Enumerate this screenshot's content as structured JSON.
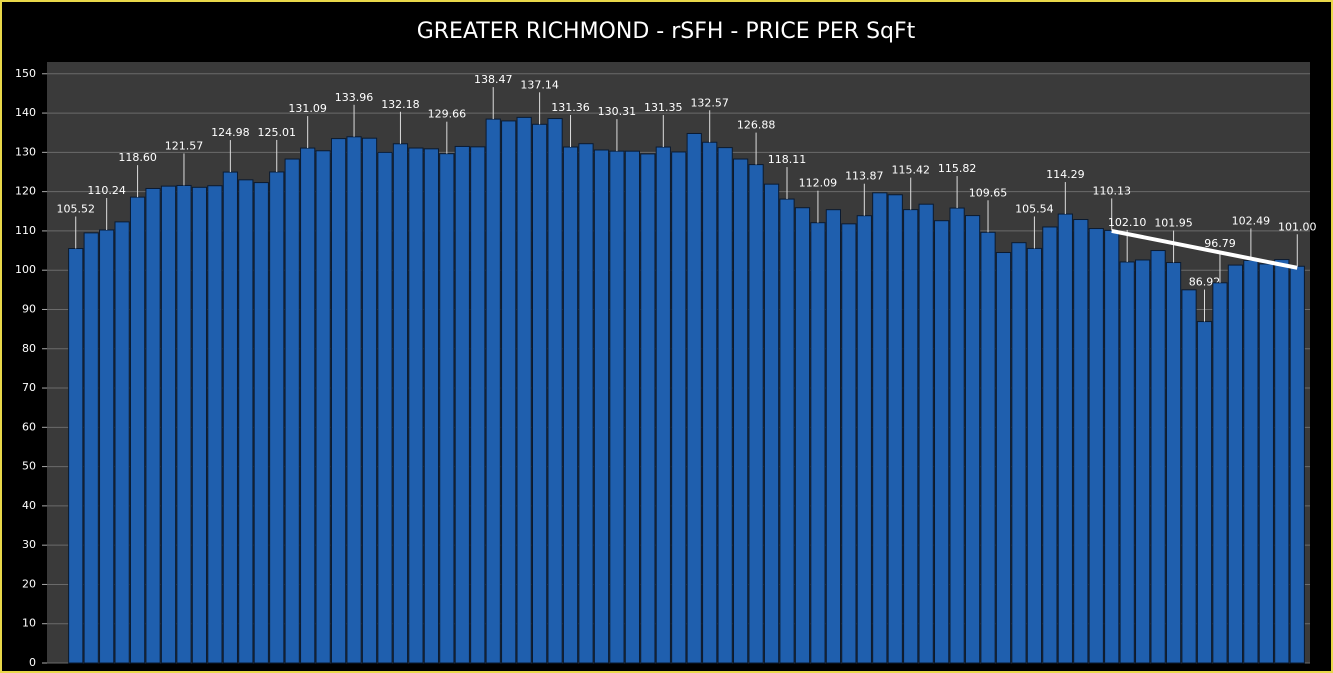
{
  "chart_data": {
    "type": "bar",
    "title": "GREATER RICHMOND - rSFH - PRICE PER SqFt",
    "values": [
      105.52,
      109.5,
      110.24,
      112.3,
      118.6,
      120.8,
      121.4,
      121.57,
      121.1,
      121.5,
      124.98,
      123,
      122.3,
      125.01,
      128.3,
      131.09,
      130.4,
      133.5,
      133.96,
      133.6,
      130,
      132.18,
      131.1,
      130.9,
      129.66,
      131.5,
      131.4,
      138.47,
      138,
      138.9,
      137.14,
      138.6,
      131.36,
      132.2,
      130.6,
      130.31,
      130.3,
      129.6,
      131.35,
      130.1,
      134.8,
      132.57,
      131.2,
      128.3,
      126.88,
      121.9,
      118.11,
      115.9,
      112.09,
      115.4,
      111.8,
      113.87,
      119.7,
      119.2,
      115.42,
      116.8,
      112.6,
      115.82,
      113.9,
      109.65,
      104.5,
      107,
      105.54,
      111,
      114.29,
      112.9,
      110.6,
      110.13,
      102.1,
      102.6,
      105,
      101.95,
      95,
      86.92,
      96.79,
      101.3,
      102.49,
      101.6,
      102.7,
      101.0
    ],
    "value_labels": [
      "105.52",
      null,
      "110.24",
      null,
      "118.60",
      null,
      null,
      "121.57",
      null,
      null,
      "124.98",
      null,
      null,
      "125.01",
      null,
      "131.09",
      null,
      null,
      "133.96",
      null,
      null,
      "132.18",
      null,
      null,
      "129.66",
      null,
      null,
      "138.47",
      null,
      null,
      "137.14",
      null,
      "131.36",
      null,
      null,
      "130.31",
      null,
      null,
      "131.35",
      null,
      null,
      "132.57",
      null,
      null,
      "126.88",
      null,
      "118.11",
      null,
      "112.09",
      null,
      null,
      "113.87",
      null,
      null,
      "115.42",
      null,
      null,
      "115.82",
      null,
      "109.65",
      null,
      null,
      "105.54",
      null,
      "114.29",
      null,
      null,
      "110.13",
      "102.10",
      null,
      null,
      "101.95",
      null,
      "86.92",
      "96.79",
      null,
      "102.49",
      null,
      null,
      "101.00"
    ],
    "color": "#1f5fae",
    "ylim": [
      0,
      153
    ],
    "yticks": [
      0,
      10,
      20,
      30,
      40,
      50,
      60,
      70,
      80,
      90,
      100,
      110,
      120,
      130,
      140,
      150
    ],
    "grid": true,
    "trend_line": {
      "x": [
        67,
        79
      ],
      "values": [
        110,
        100.6
      ],
      "color": "#ffffff"
    }
  }
}
